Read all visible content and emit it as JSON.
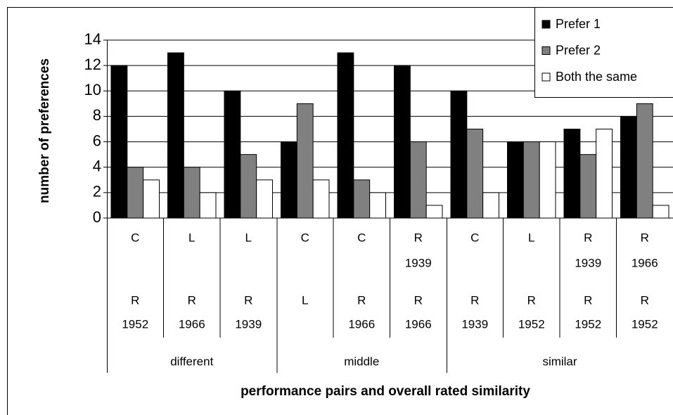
{
  "chart_data": {
    "type": "bar",
    "y_label": "number of preferences",
    "x_label": "performance pairs and overall rated similarity",
    "groups": [
      {
        "label": "different",
        "categories": [
          {
            "top": [
              "C"
            ],
            "bottom": [
              "R",
              "1952"
            ]
          },
          {
            "top": [
              "L"
            ],
            "bottom": [
              "R",
              "1966"
            ]
          },
          {
            "top": [
              "L"
            ],
            "bottom": [
              "R",
              "1939"
            ]
          }
        ]
      },
      {
        "label": "middle",
        "categories": [
          {
            "top": [
              "C"
            ],
            "bottom": [
              "L"
            ]
          },
          {
            "top": [
              "C"
            ],
            "bottom": [
              "R",
              "1966"
            ]
          },
          {
            "top": [
              "R",
              "1939"
            ],
            "bottom": [
              "R",
              "1966"
            ]
          }
        ]
      },
      {
        "label": "similar",
        "categories": [
          {
            "top": [
              "C"
            ],
            "bottom": [
              "R",
              "1939"
            ]
          },
          {
            "top": [
              "L"
            ],
            "bottom": [
              "R",
              "1952"
            ]
          },
          {
            "top": [
              "R",
              "1939"
            ],
            "bottom": [
              "R",
              "1952"
            ]
          },
          {
            "top": [
              "R",
              "1966"
            ],
            "bottom": [
              "R",
              "1952"
            ]
          }
        ]
      }
    ],
    "series": [
      {
        "name": "Prefer 1",
        "color": "#000000",
        "values": [
          12,
          13,
          10,
          6,
          13,
          12,
          10,
          6,
          7,
          8
        ]
      },
      {
        "name": "Prefer 2",
        "color": "#808080",
        "values": [
          4,
          4,
          5,
          9,
          3,
          6,
          7,
          6,
          5,
          9
        ]
      },
      {
        "name": "Both the same",
        "color": "#ffffff",
        "values": [
          3,
          2,
          3,
          3,
          2,
          1,
          2,
          6,
          7,
          1
        ]
      }
    ],
    "ylim": [
      0,
      14
    ],
    "yticks": [
      0,
      2,
      4,
      6,
      8,
      10,
      12,
      14
    ],
    "grid": true,
    "legend": "upper right"
  }
}
